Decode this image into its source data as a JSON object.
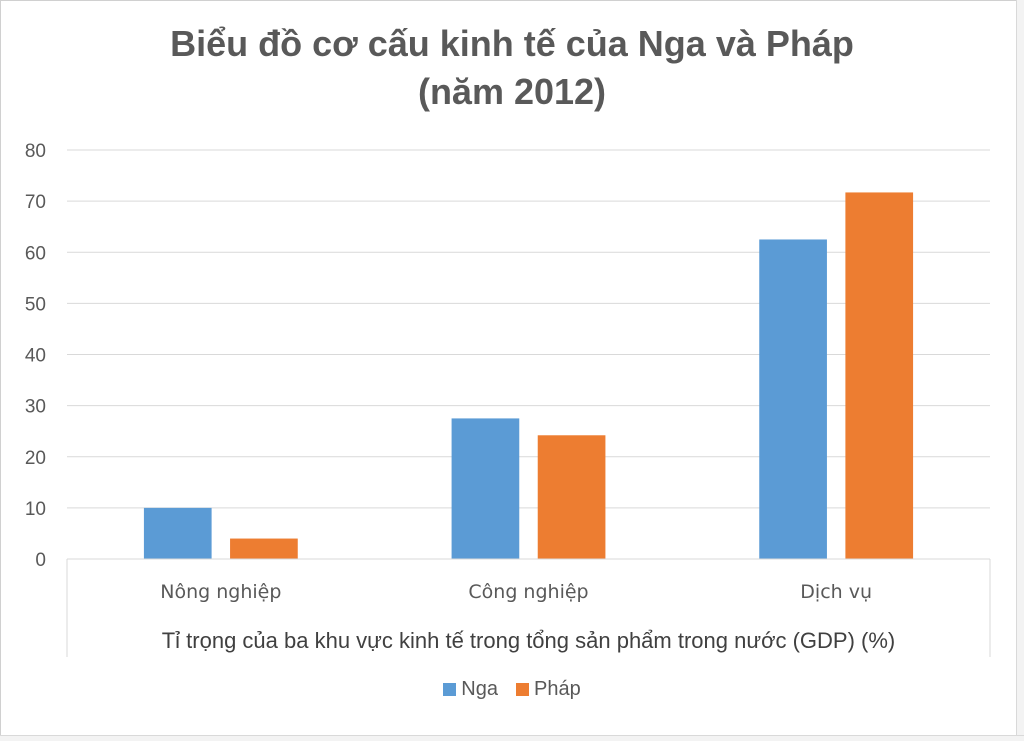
{
  "chart_data": {
    "type": "bar",
    "title": "Biểu đồ cơ cấu kinh tế của Nga và Pháp",
    "subtitle": "(năm 2012)",
    "categories": [
      "Nông nghiệp",
      "Công nghiệp",
      "Dịch vụ"
    ],
    "series": [
      {
        "name": "Nga",
        "values": [
          10,
          27.5,
          62.5
        ],
        "color": "#5b9bd5"
      },
      {
        "name": "Pháp",
        "values": [
          4,
          24.2,
          71.7
        ],
        "color": "#ed7d31"
      }
    ],
    "xlabel": "Tỉ trọng của ba khu vực kinh tế trong tổng sản phẩm trong nước (GDP) (%)",
    "ylabel": "",
    "ylim": [
      0,
      80
    ],
    "yticks": [
      0,
      10,
      20,
      30,
      40,
      50,
      60,
      70,
      80
    ],
    "grid": true,
    "legend_position": "bottom"
  }
}
